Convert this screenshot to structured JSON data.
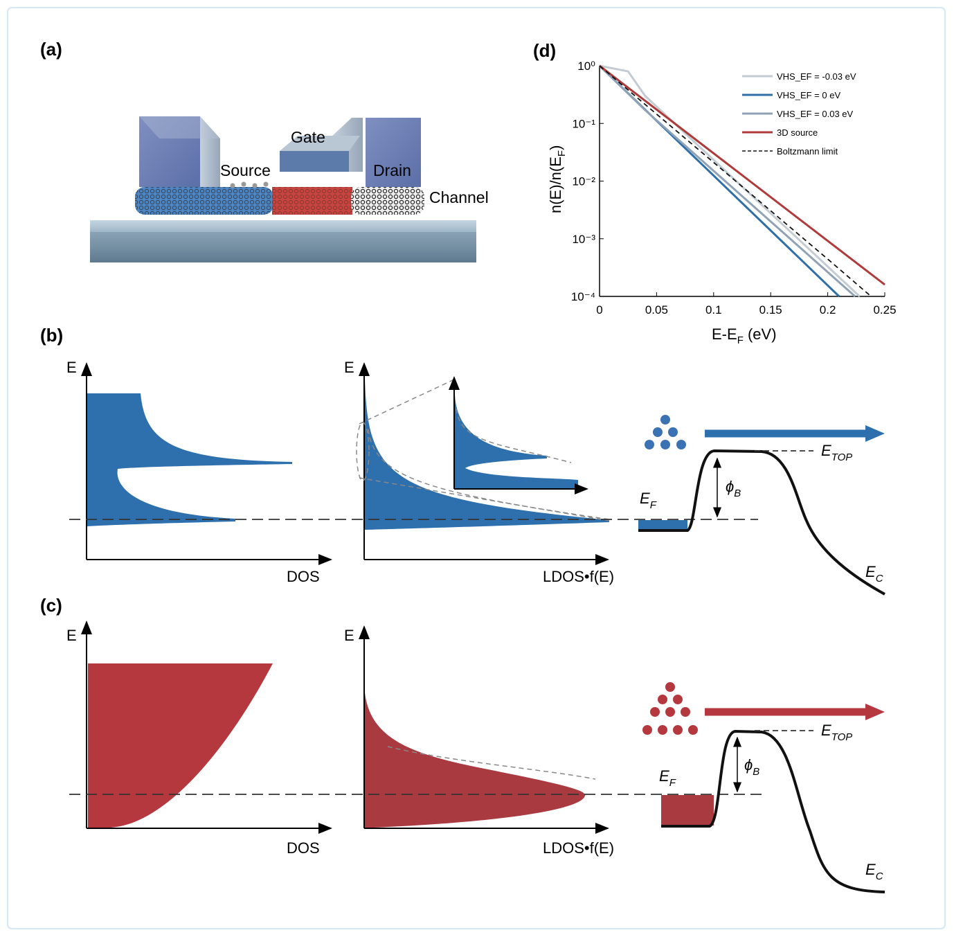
{
  "panels": {
    "a": {
      "label": "(a)",
      "parts": {
        "gate": "Gate",
        "source": "Source",
        "drain": "Drain",
        "channel": "Channel"
      }
    },
    "b": {
      "label": "(b)",
      "dos": {
        "y_axis": "E",
        "x_axis": "DOS"
      },
      "ldos": {
        "y_axis": "E",
        "x_axis": "LDOS•f(E)"
      },
      "band": {
        "e_top": [
          "E",
          "TOP"
        ],
        "phi_b": [
          "ϕ",
          "B"
        ],
        "e_f": [
          "E",
          "F"
        ],
        "e_c": [
          "E",
          "C"
        ]
      }
    },
    "c": {
      "label": "(c)",
      "dos": {
        "y_axis": "E",
        "x_axis": "DOS"
      },
      "ldos": {
        "y_axis": "E",
        "x_axis": "LDOS•f(E)"
      },
      "band": {
        "e_top": [
          "E",
          "TOP"
        ],
        "phi_b": [
          "ϕ",
          "B"
        ],
        "e_f": [
          "E",
          "F"
        ],
        "e_c": [
          "E",
          "C"
        ]
      }
    },
    "d": {
      "label": "(d)"
    }
  },
  "chart_data": {
    "type": "line",
    "x_label": [
      "E-E",
      "F",
      " (eV)"
    ],
    "y_label": [
      "n(E)/n(E",
      "F",
      ")"
    ],
    "log_y": true,
    "legend": "upper right",
    "xlim": [
      0,
      0.25
    ],
    "xticks": [
      0,
      0.05,
      0.1,
      0.15,
      0.2,
      0.25
    ],
    "ylim": [
      0.0001,
      1
    ],
    "yticks": [
      {
        "value": 1,
        "label": "10⁰"
      },
      {
        "value": 0.1,
        "label": "10⁻¹"
      },
      {
        "value": 0.01,
        "label": "10⁻²"
      },
      {
        "value": 0.001,
        "label": "10⁻³"
      },
      {
        "value": 0.0001,
        "label": "10⁻⁴"
      }
    ],
    "series": [
      {
        "name": "VHS_EF = -0.03 eV",
        "color": "#c3cbd3",
        "dash": false,
        "x": [
          0,
          0.025,
          0.04,
          0.228
        ],
        "values": [
          1,
          0.8,
          0.3,
          0.0001
        ]
      },
      {
        "name": "VHS_EF = 0 eV",
        "color": "#2f6fa8",
        "dash": false,
        "x": [
          0,
          0.21
        ],
        "values": [
          1,
          0.0001
        ]
      },
      {
        "name": "VHS_EF = 0.03 eV",
        "color": "#8fa2b6",
        "dash": false,
        "x": [
          0,
          0.04,
          0.224
        ],
        "values": [
          1,
          0.17,
          0.0001
        ]
      },
      {
        "name": "3D source",
        "color": "#b03a3a",
        "dash": false,
        "x": [
          0,
          0.25
        ],
        "values": [
          1,
          0.00016
        ]
      },
      {
        "name": "Boltzmann limit",
        "color": "#111111",
        "dash": true,
        "x": [
          0,
          0.05,
          0.1,
          0.15,
          0.2,
          0.238
        ],
        "values": [
          1,
          0.145,
          0.0211,
          0.00306,
          0.000444,
          0.0001
        ]
      }
    ]
  }
}
